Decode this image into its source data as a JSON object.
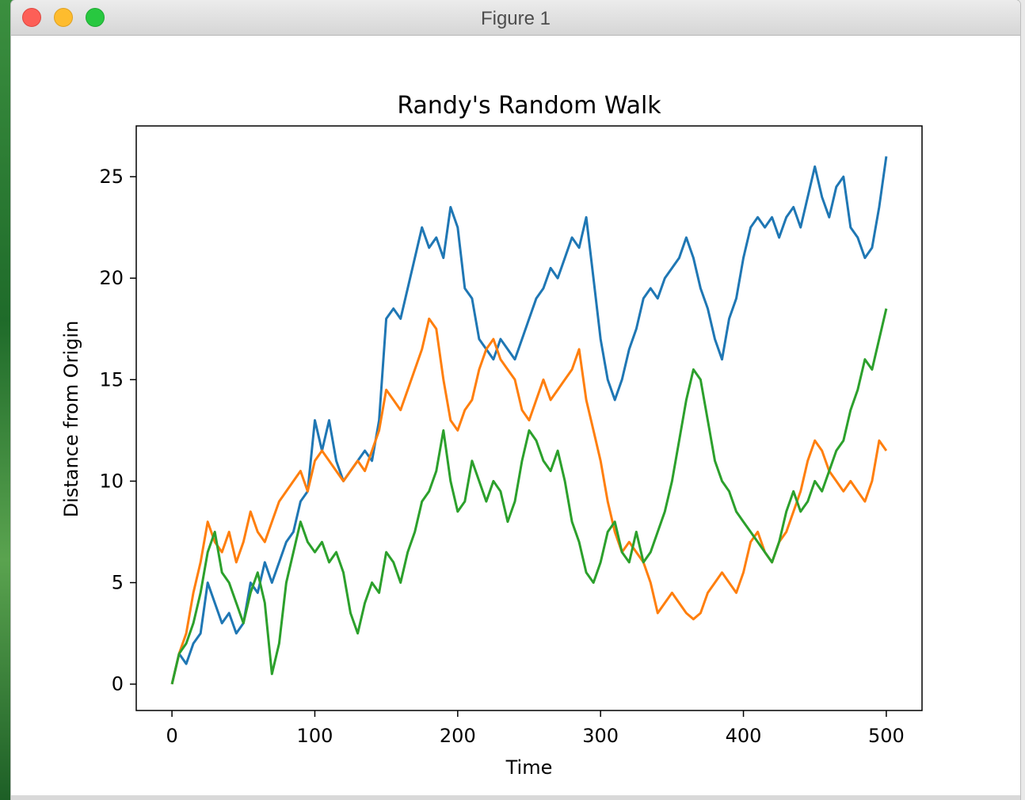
{
  "window": {
    "title": "Figure 1"
  },
  "chart_data": {
    "type": "line",
    "title": "Randy's Random Walk",
    "xlabel": "Time",
    "ylabel": "Distance from Origin",
    "xlim": [
      -25,
      525
    ],
    "ylim": [
      -1.3,
      27.5
    ],
    "xticks": [
      0,
      100,
      200,
      300,
      400,
      500
    ],
    "yticks": [
      0,
      5,
      10,
      15,
      20,
      25
    ],
    "grid": false,
    "legend": "none",
    "series": [
      {
        "color": "#1f77b4",
        "points": [
          [
            0,
            0
          ],
          [
            5,
            1.5
          ],
          [
            10,
            1
          ],
          [
            15,
            2
          ],
          [
            20,
            2.5
          ],
          [
            25,
            5
          ],
          [
            30,
            4
          ],
          [
            35,
            3
          ],
          [
            40,
            3.5
          ],
          [
            45,
            2.5
          ],
          [
            50,
            3
          ],
          [
            55,
            5
          ],
          [
            60,
            4.5
          ],
          [
            65,
            6
          ],
          [
            70,
            5
          ],
          [
            75,
            6
          ],
          [
            80,
            7
          ],
          [
            85,
            7.5
          ],
          [
            90,
            9
          ],
          [
            95,
            9.5
          ],
          [
            100,
            13
          ],
          [
            105,
            11.5
          ],
          [
            110,
            13
          ],
          [
            115,
            11
          ],
          [
            120,
            10
          ],
          [
            125,
            10.5
          ],
          [
            130,
            11
          ],
          [
            135,
            11.5
          ],
          [
            140,
            11
          ],
          [
            145,
            13
          ],
          [
            150,
            18
          ],
          [
            155,
            18.5
          ],
          [
            160,
            18
          ],
          [
            165,
            19.5
          ],
          [
            170,
            21
          ],
          [
            175,
            22.5
          ],
          [
            180,
            21.5
          ],
          [
            185,
            22
          ],
          [
            190,
            21
          ],
          [
            195,
            23.5
          ],
          [
            200,
            22.5
          ],
          [
            205,
            19.5
          ],
          [
            210,
            19
          ],
          [
            215,
            17
          ],
          [
            220,
            16.5
          ],
          [
            225,
            16
          ],
          [
            230,
            17
          ],
          [
            235,
            16.5
          ],
          [
            240,
            16
          ],
          [
            245,
            17
          ],
          [
            250,
            18
          ],
          [
            255,
            19
          ],
          [
            260,
            19.5
          ],
          [
            265,
            20.5
          ],
          [
            270,
            20
          ],
          [
            275,
            21
          ],
          [
            280,
            22
          ],
          [
            285,
            21.5
          ],
          [
            290,
            23
          ],
          [
            295,
            20
          ],
          [
            300,
            17
          ],
          [
            305,
            15
          ],
          [
            310,
            14
          ],
          [
            315,
            15
          ],
          [
            320,
            16.5
          ],
          [
            325,
            17.5
          ],
          [
            330,
            19
          ],
          [
            335,
            19.5
          ],
          [
            340,
            19
          ],
          [
            345,
            20
          ],
          [
            350,
            20.5
          ],
          [
            355,
            21
          ],
          [
            360,
            22
          ],
          [
            365,
            21
          ],
          [
            370,
            19.5
          ],
          [
            375,
            18.5
          ],
          [
            380,
            17
          ],
          [
            385,
            16
          ],
          [
            390,
            18
          ],
          [
            395,
            19
          ],
          [
            400,
            21
          ],
          [
            405,
            22.5
          ],
          [
            410,
            23
          ],
          [
            415,
            22.5
          ],
          [
            420,
            23
          ],
          [
            425,
            22
          ],
          [
            430,
            23
          ],
          [
            435,
            23.5
          ],
          [
            440,
            22.5
          ],
          [
            445,
            24
          ],
          [
            450,
            25.5
          ],
          [
            455,
            24
          ],
          [
            460,
            23
          ],
          [
            465,
            24.5
          ],
          [
            470,
            25
          ],
          [
            475,
            22.5
          ],
          [
            480,
            22
          ],
          [
            485,
            21
          ],
          [
            490,
            21.5
          ],
          [
            495,
            23.5
          ],
          [
            500,
            26
          ]
        ]
      },
      {
        "color": "#ff7f0e",
        "points": [
          [
            0,
            0
          ],
          [
            5,
            1.5
          ],
          [
            10,
            2.5
          ],
          [
            15,
            4.5
          ],
          [
            20,
            6
          ],
          [
            25,
            8
          ],
          [
            30,
            7
          ],
          [
            35,
            6.5
          ],
          [
            40,
            7.5
          ],
          [
            45,
            6
          ],
          [
            50,
            7
          ],
          [
            55,
            8.5
          ],
          [
            60,
            7.5
          ],
          [
            65,
            7
          ],
          [
            70,
            8
          ],
          [
            75,
            9
          ],
          [
            80,
            9.5
          ],
          [
            85,
            10
          ],
          [
            90,
            10.5
          ],
          [
            95,
            9.5
          ],
          [
            100,
            11
          ],
          [
            105,
            11.5
          ],
          [
            110,
            11
          ],
          [
            115,
            10.5
          ],
          [
            120,
            10
          ],
          [
            125,
            10.5
          ],
          [
            130,
            11
          ],
          [
            135,
            10.5
          ],
          [
            140,
            11.5
          ],
          [
            145,
            12.5
          ],
          [
            150,
            14.5
          ],
          [
            155,
            14
          ],
          [
            160,
            13.5
          ],
          [
            165,
            14.5
          ],
          [
            170,
            15.5
          ],
          [
            175,
            16.5
          ],
          [
            180,
            18
          ],
          [
            185,
            17.5
          ],
          [
            190,
            15
          ],
          [
            195,
            13
          ],
          [
            200,
            12.5
          ],
          [
            205,
            13.5
          ],
          [
            210,
            14
          ],
          [
            215,
            15.5
          ],
          [
            220,
            16.5
          ],
          [
            225,
            17
          ],
          [
            230,
            16
          ],
          [
            235,
            15.5
          ],
          [
            240,
            15
          ],
          [
            245,
            13.5
          ],
          [
            250,
            13
          ],
          [
            255,
            14
          ],
          [
            260,
            15
          ],
          [
            265,
            14
          ],
          [
            270,
            14.5
          ],
          [
            275,
            15
          ],
          [
            280,
            15.5
          ],
          [
            285,
            16.5
          ],
          [
            290,
            14
          ],
          [
            295,
            12.5
          ],
          [
            300,
            11
          ],
          [
            305,
            9
          ],
          [
            310,
            7.5
          ],
          [
            315,
            6.5
          ],
          [
            320,
            7
          ],
          [
            325,
            6.5
          ],
          [
            330,
            6
          ],
          [
            335,
            5
          ],
          [
            340,
            3.5
          ],
          [
            345,
            4
          ],
          [
            350,
            4.5
          ],
          [
            355,
            4
          ],
          [
            360,
            3.5
          ],
          [
            365,
            3.2
          ],
          [
            370,
            3.5
          ],
          [
            375,
            4.5
          ],
          [
            380,
            5
          ],
          [
            385,
            5.5
          ],
          [
            390,
            5
          ],
          [
            395,
            4.5
          ],
          [
            400,
            5.5
          ],
          [
            405,
            7
          ],
          [
            410,
            7.5
          ],
          [
            415,
            6.5
          ],
          [
            420,
            6
          ],
          [
            425,
            7
          ],
          [
            430,
            7.5
          ],
          [
            435,
            8.5
          ],
          [
            440,
            9.5
          ],
          [
            445,
            11
          ],
          [
            450,
            12
          ],
          [
            455,
            11.5
          ],
          [
            460,
            10.5
          ],
          [
            465,
            10
          ],
          [
            470,
            9.5
          ],
          [
            475,
            10
          ],
          [
            480,
            9.5
          ],
          [
            485,
            9
          ],
          [
            490,
            10
          ],
          [
            495,
            12
          ],
          [
            500,
            11.5
          ]
        ]
      },
      {
        "color": "#2ca02c",
        "points": [
          [
            0,
            0
          ],
          [
            5,
            1.5
          ],
          [
            10,
            2
          ],
          [
            15,
            3
          ],
          [
            20,
            4.5
          ],
          [
            25,
            6.5
          ],
          [
            30,
            7.5
          ],
          [
            35,
            5.5
          ],
          [
            40,
            5
          ],
          [
            45,
            4
          ],
          [
            50,
            3
          ],
          [
            55,
            4.5
          ],
          [
            60,
            5.5
          ],
          [
            65,
            4
          ],
          [
            70,
            0.5
          ],
          [
            75,
            2
          ],
          [
            80,
            5
          ],
          [
            85,
            6.5
          ],
          [
            90,
            8
          ],
          [
            95,
            7
          ],
          [
            100,
            6.5
          ],
          [
            105,
            7
          ],
          [
            110,
            6
          ],
          [
            115,
            6.5
          ],
          [
            120,
            5.5
          ],
          [
            125,
            3.5
          ],
          [
            130,
            2.5
          ],
          [
            135,
            4
          ],
          [
            140,
            5
          ],
          [
            145,
            4.5
          ],
          [
            150,
            6.5
          ],
          [
            155,
            6
          ],
          [
            160,
            5
          ],
          [
            165,
            6.5
          ],
          [
            170,
            7.5
          ],
          [
            175,
            9
          ],
          [
            180,
            9.5
          ],
          [
            185,
            10.5
          ],
          [
            190,
            12.5
          ],
          [
            195,
            10
          ],
          [
            200,
            8.5
          ],
          [
            205,
            9
          ],
          [
            210,
            11
          ],
          [
            215,
            10
          ],
          [
            220,
            9
          ],
          [
            225,
            10
          ],
          [
            230,
            9.5
          ],
          [
            235,
            8
          ],
          [
            240,
            9
          ],
          [
            245,
            11
          ],
          [
            250,
            12.5
          ],
          [
            255,
            12
          ],
          [
            260,
            11
          ],
          [
            265,
            10.5
          ],
          [
            270,
            11.5
          ],
          [
            275,
            10
          ],
          [
            280,
            8
          ],
          [
            285,
            7
          ],
          [
            290,
            5.5
          ],
          [
            295,
            5
          ],
          [
            300,
            6
          ],
          [
            305,
            7.5
          ],
          [
            310,
            8
          ],
          [
            315,
            6.5
          ],
          [
            320,
            6
          ],
          [
            325,
            7.5
          ],
          [
            330,
            6
          ],
          [
            335,
            6.5
          ],
          [
            340,
            7.5
          ],
          [
            345,
            8.5
          ],
          [
            350,
            10
          ],
          [
            355,
            12
          ],
          [
            360,
            14
          ],
          [
            365,
            15.5
          ],
          [
            370,
            15
          ],
          [
            375,
            13
          ],
          [
            380,
            11
          ],
          [
            385,
            10
          ],
          [
            390,
            9.5
          ],
          [
            395,
            8.5
          ],
          [
            400,
            8
          ],
          [
            405,
            7.5
          ],
          [
            410,
            7
          ],
          [
            415,
            6.5
          ],
          [
            420,
            6
          ],
          [
            425,
            7
          ],
          [
            430,
            8.5
          ],
          [
            435,
            9.5
          ],
          [
            440,
            8.5
          ],
          [
            445,
            9
          ],
          [
            450,
            10
          ],
          [
            455,
            9.5
          ],
          [
            460,
            10.5
          ],
          [
            465,
            11.5
          ],
          [
            470,
            12
          ],
          [
            475,
            13.5
          ],
          [
            480,
            14.5
          ],
          [
            485,
            16
          ],
          [
            490,
            15.5
          ],
          [
            495,
            17
          ],
          [
            500,
            18.5
          ]
        ]
      }
    ]
  }
}
